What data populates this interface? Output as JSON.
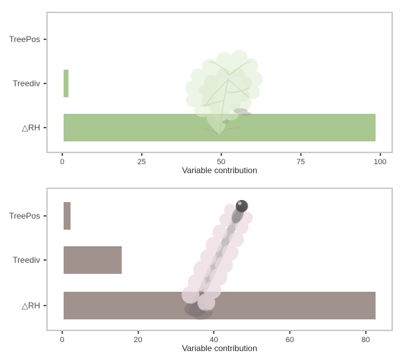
{
  "figure": {
    "background": "#ffffff",
    "title": "",
    "panel_border_color": "#c9c9c9",
    "axis_text_color": "#474747",
    "axis_title_color": "#2b2b2b"
  },
  "chart_data": [
    {
      "type": "bar",
      "orientation": "horizontal",
      "title": "",
      "categories": [
        "TreePos",
        "Treediv",
        "△RH"
      ],
      "values": [
        0,
        1.5,
        99
      ],
      "xlabel": "Variable contribution",
      "ylabel": "",
      "xticks": [
        0,
        25,
        50,
        75,
        100
      ],
      "xlim": [
        -5,
        104
      ],
      "bar_color": "#a8c791",
      "grid": false,
      "legend": false,
      "overlay_photo": "faint feathery green moss / tree-shaped moss photo"
    },
    {
      "type": "bar",
      "orientation": "horizontal",
      "title": "",
      "categories": [
        "TreePos",
        "Treediv",
        "△RH"
      ],
      "values": [
        2,
        15.5,
        83
      ],
      "xlabel": "Variable contribution",
      "ylabel": "",
      "xticks": [
        0,
        20,
        40,
        60,
        80
      ],
      "xlim": [
        -4.15,
        87.15
      ],
      "bar_color": "#a1928e",
      "grid": false,
      "legend": false,
      "overlay_photo": "faint pinkish-grey leafy moss shoot photo with dark tip, angled diagonally"
    }
  ],
  "decorations": [
    {
      "name": "green-moss-photo",
      "label": "translucent green feathery moss overlay (top chart)"
    },
    {
      "name": "pink-moss-shoot-photo",
      "label": "translucent pink-grey moss shoot overlay (bottom chart)"
    }
  ]
}
